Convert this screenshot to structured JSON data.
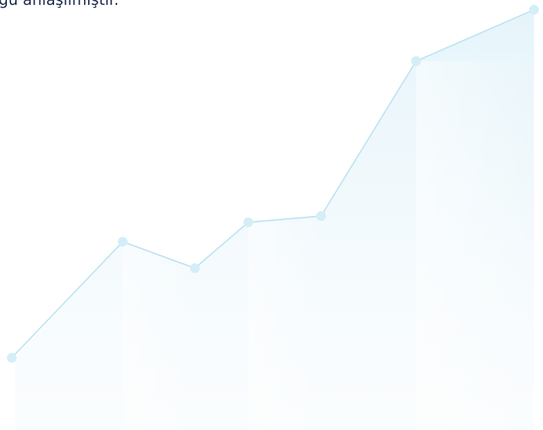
{
  "text": {
    "caption": "ğu anlaşılmıştır."
  }
}
